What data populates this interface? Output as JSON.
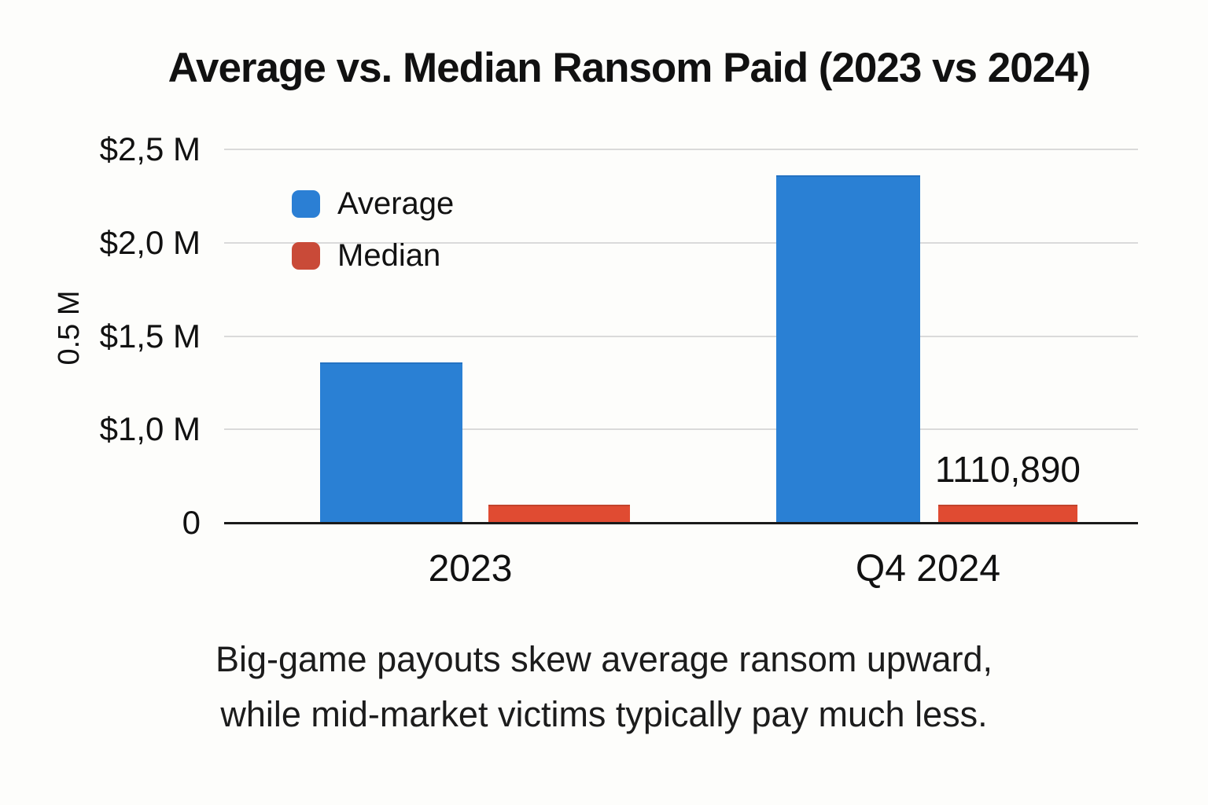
{
  "chart_data": {
    "type": "bar",
    "title": "Average vs. Median Ransom Paid (2023 vs 2024)",
    "categories": [
      "2023",
      "Q4 2024"
    ],
    "series": [
      {
        "name": "Average",
        "color": "#2a80d4",
        "legend_color": "#2b7fd4",
        "values_musd": [
          1.36,
          2.36
        ]
      },
      {
        "name": "Median",
        "color": "#e04b32",
        "legend_color": "#c94a38",
        "values_musd": [
          0.19,
          0.19
        ]
      }
    ],
    "y_axis": {
      "tick_labels": [
        "$2,5 M",
        "$2,0 M",
        "$1,5 M",
        "$1,0 M",
        "0"
      ],
      "tick_values_musd": [
        2.5,
        2.0,
        1.5,
        1.0,
        0
      ],
      "side_label": "0.5 M"
    },
    "annotations": [
      {
        "text": "1110,890",
        "category_index": 1,
        "series_index": 1
      }
    ],
    "legend": [
      "Average",
      "Median"
    ],
    "legend_position": "top-left-inside",
    "grid": "horizontal",
    "ylim": [
      0,
      2.5
    ]
  },
  "caption": {
    "line1": "Big-game payouts skew average ransom upward,",
    "line2": "while mid-market victims typically pay much less."
  }
}
